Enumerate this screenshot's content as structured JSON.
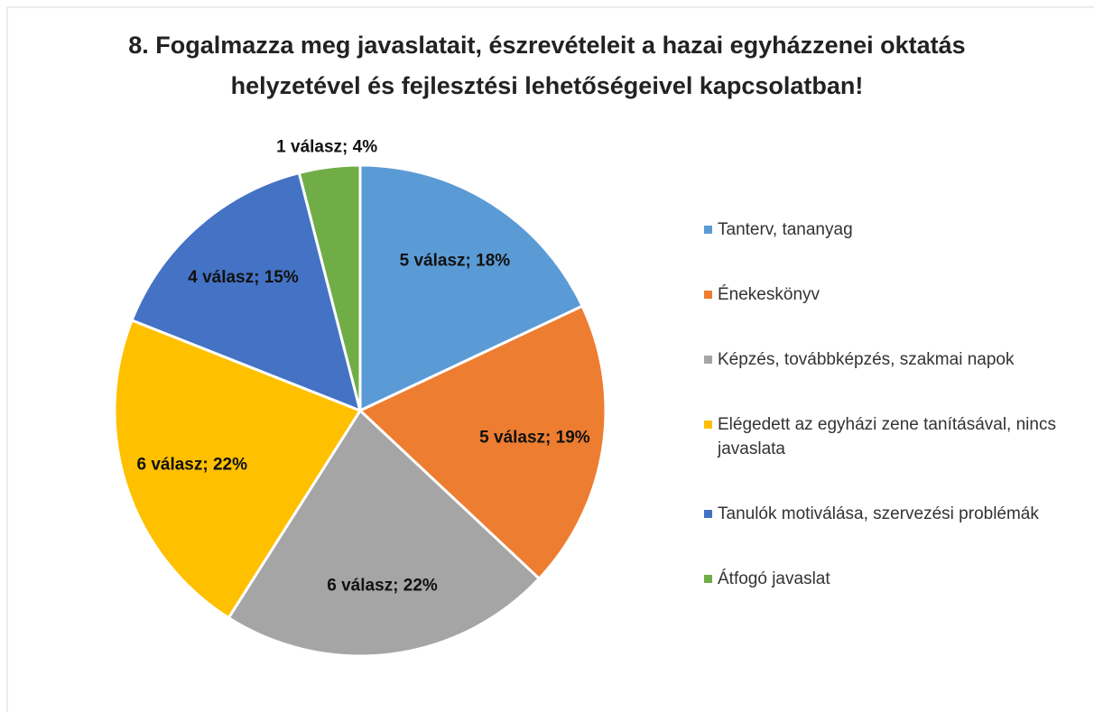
{
  "chart_data": {
    "type": "pie",
    "title": "8. Fogalmazza meg javaslatait, észrevételeit a hazai egyházzenei oktatás helyzetével és fejlesztési lehetőségeivel kapcsolatban!",
    "categories": [
      "Tanterv, tananyag",
      "Énekeskönyv",
      "Képzés, továbbképzés, szakmai napok",
      "Elégedett az egyházi zene tanításával, nincs javaslata",
      "Tanulók motiválása, szervezési problémák",
      "Átfogó javaslat"
    ],
    "values": [
      18,
      19,
      22,
      22,
      15,
      4
    ],
    "value_labels": [
      "5 válasz; 18%",
      "5 válasz; 19%",
      "6 válasz; 22%",
      "6 válasz; 22%",
      "4 válasz; 15%",
      "1 válasz; 4%"
    ],
    "colors": [
      "#5b9bd5",
      "#ed7d31",
      "#a5a5a5",
      "#ffc000",
      "#4472c4",
      "#70ad47"
    ],
    "legend": "right"
  }
}
